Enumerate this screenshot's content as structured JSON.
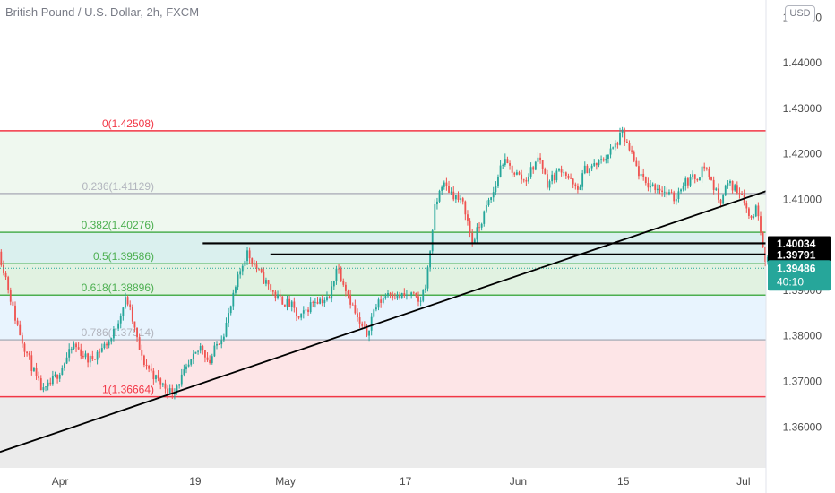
{
  "header": {
    "title": "British Pound / U.S. Dollar, 2h, FXCM",
    "currency": "USD"
  },
  "colors": {
    "up": "#26a69a",
    "down": "#ef5350",
    "fib_red": "#f23645",
    "fib_green": "#4caf50",
    "fib_gray": "#b2b5be",
    "trendline": "#000000"
  },
  "chart_data": {
    "type": "candlestick",
    "ylim": [
      1.351,
      1.4538
    ],
    "yticks": [
      "1.45000",
      "1.44000",
      "1.43000",
      "1.42000",
      "1.41000",
      "1.40000",
      "1.39000",
      "1.38000",
      "1.37000",
      "1.36000"
    ],
    "ytick_values": [
      1.45,
      1.44,
      1.43,
      1.42,
      1.41,
      1.4,
      1.39,
      1.38,
      1.37,
      1.36
    ],
    "xticks": [
      "Apr",
      "19",
      "May",
      "17",
      "Jun",
      "15",
      "Jul"
    ],
    "xtick_dates": [
      "2021-04-01",
      "2021-04-19",
      "2021-05-01",
      "2021-05-17",
      "2021-06-01",
      "2021-06-15",
      "2021-07-01"
    ],
    "xlim": [
      "2021-03-24",
      "2021-07-04"
    ],
    "fibonacci": [
      {
        "label": "0(1.42508)",
        "level": 1.42508,
        "color": "#f23645"
      },
      {
        "label": "0.236(1.41129)",
        "level": 1.41129,
        "color": "#b2b5be"
      },
      {
        "label": "0.382(1.40276)",
        "level": 1.40276,
        "color": "#4caf50"
      },
      {
        "label": "0.5(1.39586)",
        "level": 1.39586,
        "color": "#4caf50"
      },
      {
        "label": "0.618(1.38896)",
        "level": 1.38896,
        "color": "#4caf50"
      },
      {
        "label": "0.786(1.37914)",
        "level": 1.37914,
        "color": "#b2b5be"
      },
      {
        "label": "1(1.36664)",
        "level": 1.36664,
        "color": "#f23645"
      }
    ],
    "horizontal_lines": [
      {
        "value": 1.40034,
        "label": "1.40034",
        "from": "2021-04-20"
      },
      {
        "value": 1.39791,
        "label": "1.39791",
        "from": "2021-04-29"
      }
    ],
    "trendline": {
      "from": [
        "2021-03-24",
        1.3545
      ],
      "to": [
        "2021-07-04",
        1.4118
      ]
    },
    "current_price": {
      "value": 1.39486,
      "label": "1.39486",
      "countdown": "40:10"
    },
    "path": [
      [
        "2021-03-24",
        1.3985
      ],
      [
        "2021-03-25",
        1.3925
      ],
      [
        "2021-03-26",
        1.385
      ],
      [
        "2021-03-27",
        1.3795
      ],
      [
        "2021-03-29",
        1.3705
      ],
      [
        "2021-03-30",
        1.3675
      ],
      [
        "2021-04-01",
        1.372
      ],
      [
        "2021-04-03",
        1.378
      ],
      [
        "2021-04-05",
        1.3745
      ],
      [
        "2021-04-08",
        1.3795
      ],
      [
        "2021-04-10",
        1.3885
      ],
      [
        "2021-04-11",
        1.382
      ],
      [
        "2021-04-12",
        1.375
      ],
      [
        "2021-04-14",
        1.3705
      ],
      [
        "2021-04-16",
        1.3675
      ],
      [
        "2021-04-18",
        1.3725
      ],
      [
        "2021-04-20",
        1.378
      ],
      [
        "2021-04-21",
        1.374
      ],
      [
        "2021-04-22",
        1.378
      ],
      [
        "2021-04-23",
        1.381
      ],
      [
        "2021-04-24",
        1.387
      ],
      [
        "2021-04-25",
        1.3935
      ],
      [
        "2021-04-26",
        1.3985
      ],
      [
        "2021-04-28",
        1.393
      ],
      [
        "2021-04-30",
        1.3885
      ],
      [
        "2021-05-02",
        1.3865
      ],
      [
        "2021-05-03",
        1.3835
      ],
      [
        "2021-05-05",
        1.388
      ],
      [
        "2021-05-07",
        1.388
      ],
      [
        "2021-05-08",
        1.3955
      ],
      [
        "2021-05-09",
        1.3915
      ],
      [
        "2021-05-11",
        1.3825
      ],
      [
        "2021-05-12",
        1.3805
      ],
      [
        "2021-05-13",
        1.386
      ],
      [
        "2021-05-15",
        1.39
      ],
      [
        "2021-05-16",
        1.3885
      ],
      [
        "2021-05-18",
        1.389
      ],
      [
        "2021-05-19",
        1.387
      ],
      [
        "2021-05-20",
        1.3925
      ],
      [
        "2021-05-21",
        1.4075
      ],
      [
        "2021-05-22",
        1.4135
      ],
      [
        "2021-05-23",
        1.412
      ],
      [
        "2021-05-25",
        1.4085
      ],
      [
        "2021-05-26",
        1.4005
      ],
      [
        "2021-05-27",
        1.404
      ],
      [
        "2021-05-28",
        1.4085
      ],
      [
        "2021-05-29",
        1.412
      ],
      [
        "2021-05-30",
        1.4185
      ],
      [
        "2021-06-01",
        1.4155
      ],
      [
        "2021-06-02",
        1.414
      ],
      [
        "2021-06-04",
        1.4195
      ],
      [
        "2021-06-05",
        1.4135
      ],
      [
        "2021-06-07",
        1.417
      ],
      [
        "2021-06-09",
        1.4115
      ],
      [
        "2021-06-10",
        1.4165
      ],
      [
        "2021-06-12",
        1.418
      ],
      [
        "2021-06-14",
        1.4215
      ],
      [
        "2021-06-15",
        1.4245
      ],
      [
        "2021-06-17",
        1.4165
      ],
      [
        "2021-06-18",
        1.4135
      ],
      [
        "2021-06-20",
        1.4125
      ],
      [
        "2021-06-22",
        1.41
      ],
      [
        "2021-06-23",
        1.4135
      ],
      [
        "2021-06-25",
        1.415
      ],
      [
        "2021-06-26",
        1.4175
      ],
      [
        "2021-06-28",
        1.4095
      ],
      [
        "2021-06-29",
        1.4135
      ],
      [
        "2021-06-30",
        1.4125
      ],
      [
        "2021-07-01",
        1.4115
      ],
      [
        "2021-07-02",
        1.4055
      ],
      [
        "2021-07-03",
        1.4085
      ],
      [
        "2021-07-04",
        1.3975
      ],
      [
        "2021-07-05",
        1.3948
      ]
    ]
  }
}
